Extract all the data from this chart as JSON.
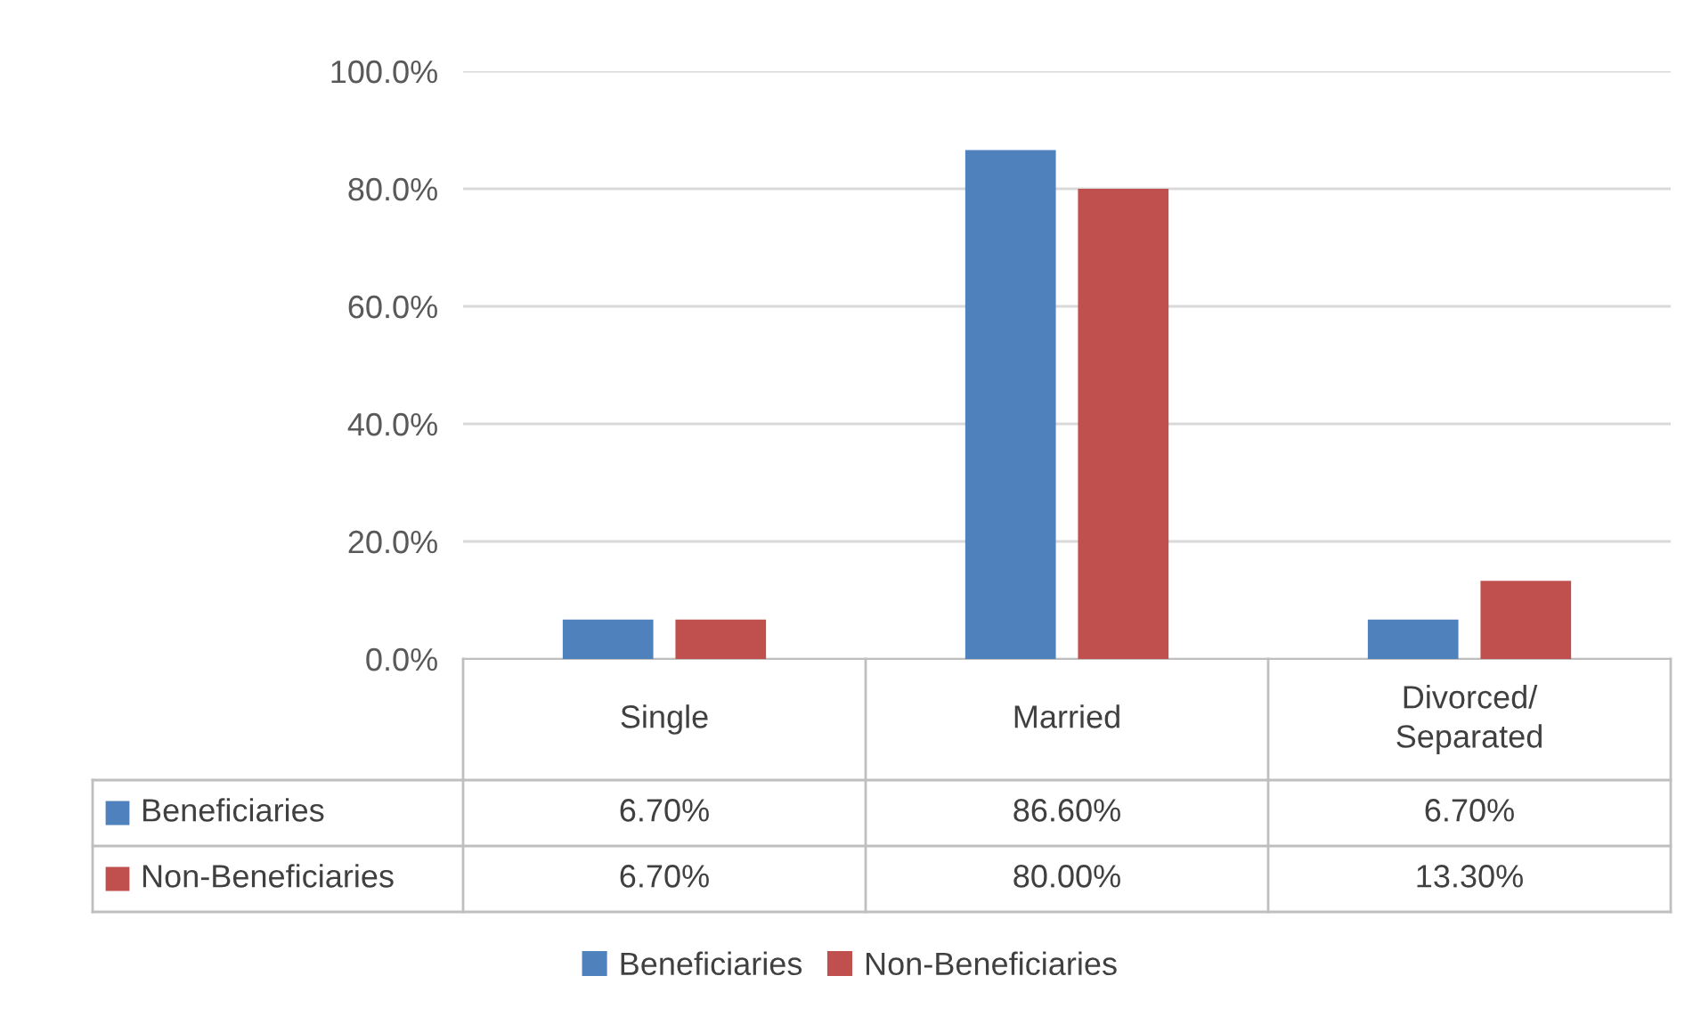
{
  "chart_data": {
    "type": "bar",
    "categories": [
      "Single",
      "Married",
      "Divorced/\nSeparated"
    ],
    "series": [
      {
        "name": "Beneficiaries",
        "color": "#4f81bd",
        "values": [
          6.7,
          86.6,
          6.7
        ],
        "value_labels": [
          "6.70%",
          "86.60%",
          "6.70%"
        ]
      },
      {
        "name": "Non-Beneficiaries",
        "color": "#c0504d",
        "values": [
          6.7,
          80.0,
          13.3
        ],
        "value_labels": [
          "6.70%",
          "80.00%",
          "13.30%"
        ]
      }
    ],
    "ylim": [
      0,
      100
    ],
    "yticks": [
      {
        "value": 0,
        "label": "0.0%"
      },
      {
        "value": 20,
        "label": "20.0%"
      },
      {
        "value": 40,
        "label": "40.0%"
      },
      {
        "value": 60,
        "label": "60.0%"
      },
      {
        "value": 80,
        "label": "80.0%"
      },
      {
        "value": 100,
        "label": "100.0%"
      }
    ],
    "grid": "y",
    "legend": "bottom"
  }
}
